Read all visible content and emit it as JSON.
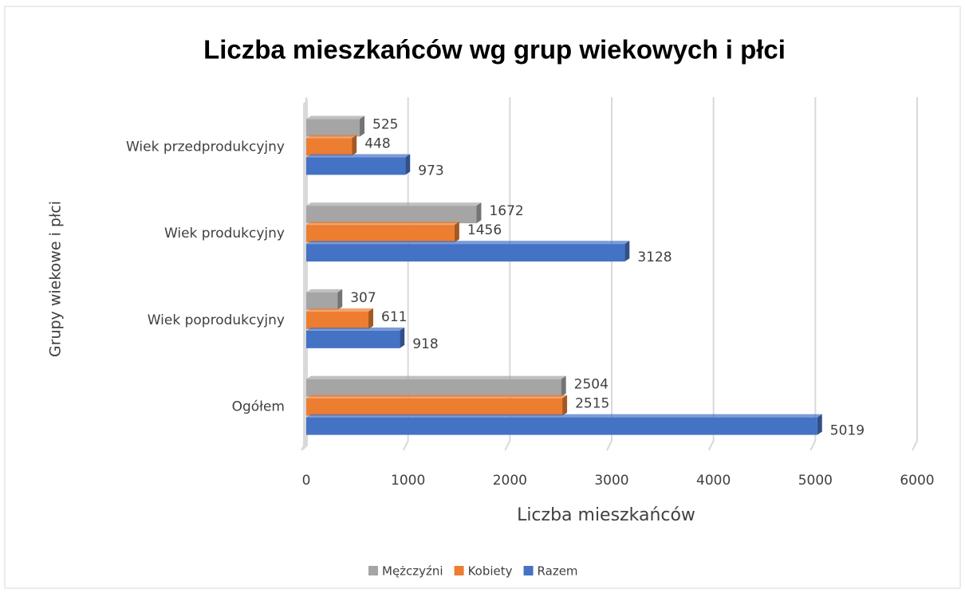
{
  "chart_data": {
    "type": "bar",
    "orientation": "horizontal",
    "title": "Liczba mieszkańców  wg grup wiekowych i płci",
    "xlabel": "Liczba mieszkańców",
    "ylabel": "Grupy wiekowe i płci",
    "categories": [
      "Wiek przedprodukcyjny",
      "Wiek produkcyjny",
      "Wiek poprodukcyjny",
      "Ogółem"
    ],
    "series": [
      {
        "name": "Mężczyźni",
        "color": "#a5a5a5",
        "values": [
          525,
          1672,
          307,
          2504
        ]
      },
      {
        "name": "Kobiety",
        "color": "#ed7d31",
        "values": [
          448,
          1456,
          611,
          2515
        ]
      },
      {
        "name": "Razem",
        "color": "#4472c4",
        "values": [
          973,
          3128,
          918,
          5019
        ]
      }
    ],
    "xlim": [
      0,
      6000
    ],
    "xticks": [
      0,
      1000,
      2000,
      3000,
      4000,
      5000,
      6000
    ],
    "grid": true,
    "legend": "bottom"
  }
}
